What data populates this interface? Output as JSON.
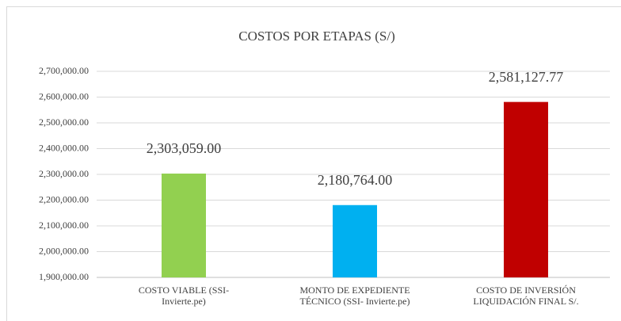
{
  "chart_data": {
    "type": "bar",
    "title": "COSTOS POR ETAPAS (S/)",
    "categories": [
      "COSTO VIABLE  (SSI-\nInvierte.pe)",
      "MONTO DE EXPEDIENTE\nTÉCNICO (SSI- Invierte.pe)",
      "COSTO DE INVERSIÓN\nLIQUIDACIÓN FINAL S/."
    ],
    "values": [
      2303059.0,
      2180764.0,
      2581127.77
    ],
    "value_labels": [
      "2,303,059.00",
      "2,180,764.00",
      "2,581,127.77"
    ],
    "colors": [
      "#92d050",
      "#00b0f0",
      "#c00000"
    ],
    "ylim": [
      1900000,
      2700000
    ],
    "yticks": [
      {
        "value": 1900000,
        "label": "1,900,000.00"
      },
      {
        "value": 2000000,
        "label": "2,000,000.00"
      },
      {
        "value": 2100000,
        "label": "2,100,000.00"
      },
      {
        "value": 2200000,
        "label": "2,200,000.00"
      },
      {
        "value": 2300000,
        "label": "2,300,000.00"
      },
      {
        "value": 2400000,
        "label": "2,400,000.00"
      },
      {
        "value": 2500000,
        "label": "2,500,000.00"
      },
      {
        "value": 2600000,
        "label": "2,600,000.00"
      },
      {
        "value": 2700000,
        "label": "2,700,000.00"
      }
    ],
    "grid": true
  }
}
